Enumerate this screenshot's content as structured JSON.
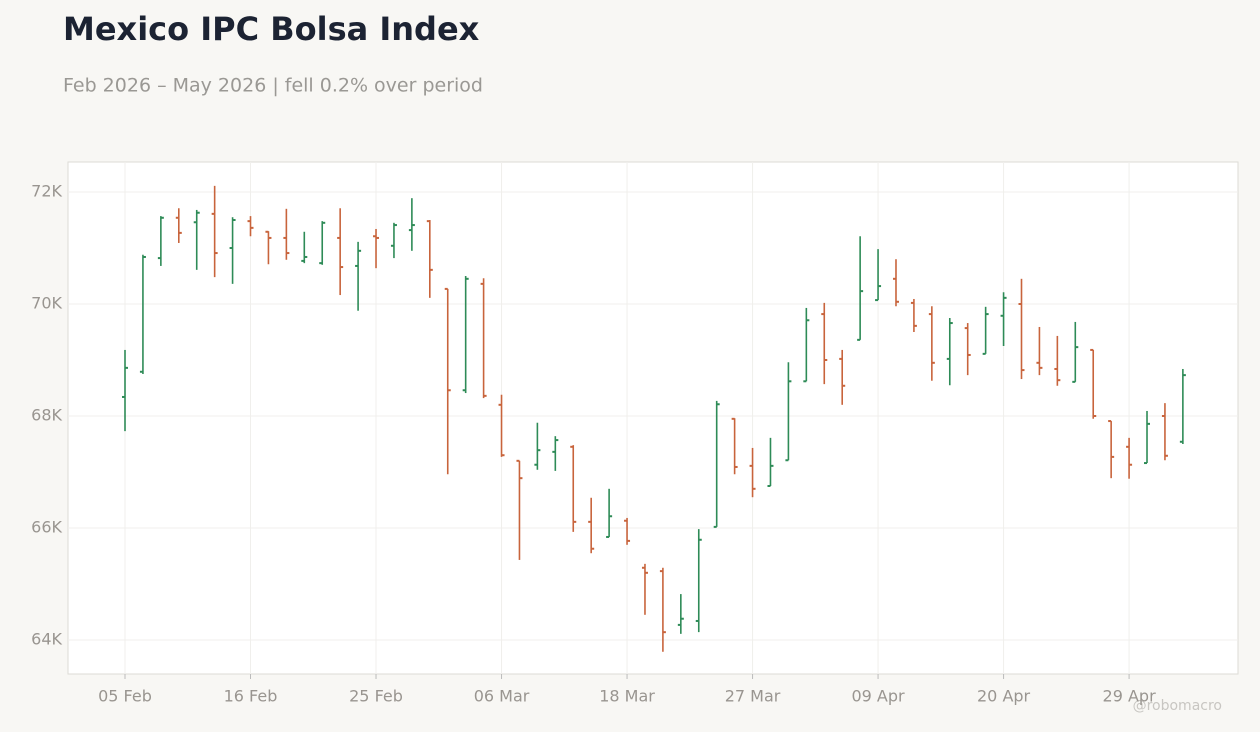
{
  "chart_data": {
    "type": "ohlc",
    "title": "Mexico IPC Bolsa Index",
    "subtitle": "Feb 2026 – May 2026 | fell 0.2% over period",
    "watermark": "@robomacro",
    "up_color": "#2e8b57",
    "down_color": "#c8643c",
    "grid": true,
    "ylim": [
      63393,
      72536
    ],
    "yticks": [
      {
        "value": 64000,
        "label": "64K"
      },
      {
        "value": 66000,
        "label": "66K"
      },
      {
        "value": 68000,
        "label": "68K"
      },
      {
        "value": 70000,
        "label": "70K"
      },
      {
        "value": 72000,
        "label": "72K"
      }
    ],
    "categories": [
      "05 Feb",
      null,
      null,
      null,
      null,
      null,
      null,
      "16 Feb",
      null,
      null,
      null,
      null,
      null,
      null,
      "25 Feb",
      null,
      null,
      null,
      null,
      null,
      null,
      "06 Mar",
      null,
      null,
      null,
      null,
      null,
      null,
      "18 Mar",
      null,
      null,
      null,
      null,
      null,
      null,
      "27 Mar",
      null,
      null,
      null,
      null,
      null,
      null,
      "09 Apr",
      null,
      null,
      null,
      null,
      null,
      null,
      "20 Apr",
      null,
      null,
      null,
      null,
      null,
      null,
      "29 Apr",
      null,
      null,
      null
    ],
    "open": [
      68340,
      68790,
      70820,
      71540,
      71460,
      71610,
      71000,
      71480,
      71290,
      71180,
      70770,
      70730,
      71180,
      70680,
      71210,
      71040,
      71320,
      71480,
      70270,
      68460,
      70360,
      68200,
      67200,
      67130,
      67360,
      67450,
      66110,
      65840,
      66130,
      65290,
      65230,
      64270,
      64340,
      66020,
      67950,
      67110,
      66750,
      67210,
      68620,
      69820,
      69020,
      69360,
      70070,
      70450,
      70020,
      69820,
      69020,
      69570,
      69110,
      69790,
      70000,
      68950,
      68840,
      68610,
      69180,
      67910,
      67450,
      67160,
      68000,
      67540
    ],
    "high": [
      69180,
      70880,
      71570,
      71710,
      71680,
      72110,
      71550,
      71570,
      71300,
      71700,
      71290,
      71480,
      71710,
      71110,
      71340,
      71450,
      71890,
      71500,
      70270,
      70500,
      70460,
      68380,
      67200,
      67880,
      67640,
      67480,
      66540,
      66700,
      66180,
      65360,
      65290,
      64820,
      65980,
      68270,
      67960,
      67430,
      67610,
      68960,
      69930,
      70020,
      69180,
      71210,
      70980,
      70800,
      70090,
      69960,
      69750,
      69660,
      69950,
      70210,
      70450,
      69590,
      69430,
      69680,
      69180,
      67910,
      67610,
      68090,
      68230,
      68840
    ],
    "low": [
      67730,
      68750,
      70680,
      71090,
      70610,
      70480,
      70360,
      71210,
      70710,
      70790,
      70730,
      70700,
      70160,
      69880,
      70640,
      70820,
      70950,
      70110,
      66960,
      68410,
      68320,
      67270,
      65430,
      67040,
      67020,
      65930,
      65550,
      65840,
      65700,
      64450,
      63790,
      64110,
      64140,
      66020,
      66960,
      66550,
      66750,
      67210,
      68620,
      68570,
      68200,
      69360,
      70070,
      69960,
      69500,
      68630,
      68550,
      68730,
      69110,
      69250,
      68660,
      68730,
      68540,
      68610,
      67950,
      66890,
      66880,
      67160,
      67210,
      67500
    ],
    "close": [
      68860,
      70840,
      71540,
      71270,
      71630,
      70910,
      71500,
      71360,
      71180,
      70910,
      70840,
      71450,
      70660,
      70950,
      71180,
      71410,
      71410,
      70610,
      68460,
      70450,
      68360,
      67300,
      66890,
      67390,
      67570,
      66110,
      65630,
      66210,
      65770,
      65200,
      64140,
      64380,
      65790,
      68210,
      67090,
      66700,
      67110,
      68620,
      69710,
      69000,
      68540,
      70230,
      70320,
      70040,
      69610,
      68950,
      69660,
      69090,
      69820,
      70110,
      68820,
      68860,
      68640,
      69230,
      68000,
      67270,
      67130,
      67860,
      67290,
      68730
    ]
  }
}
